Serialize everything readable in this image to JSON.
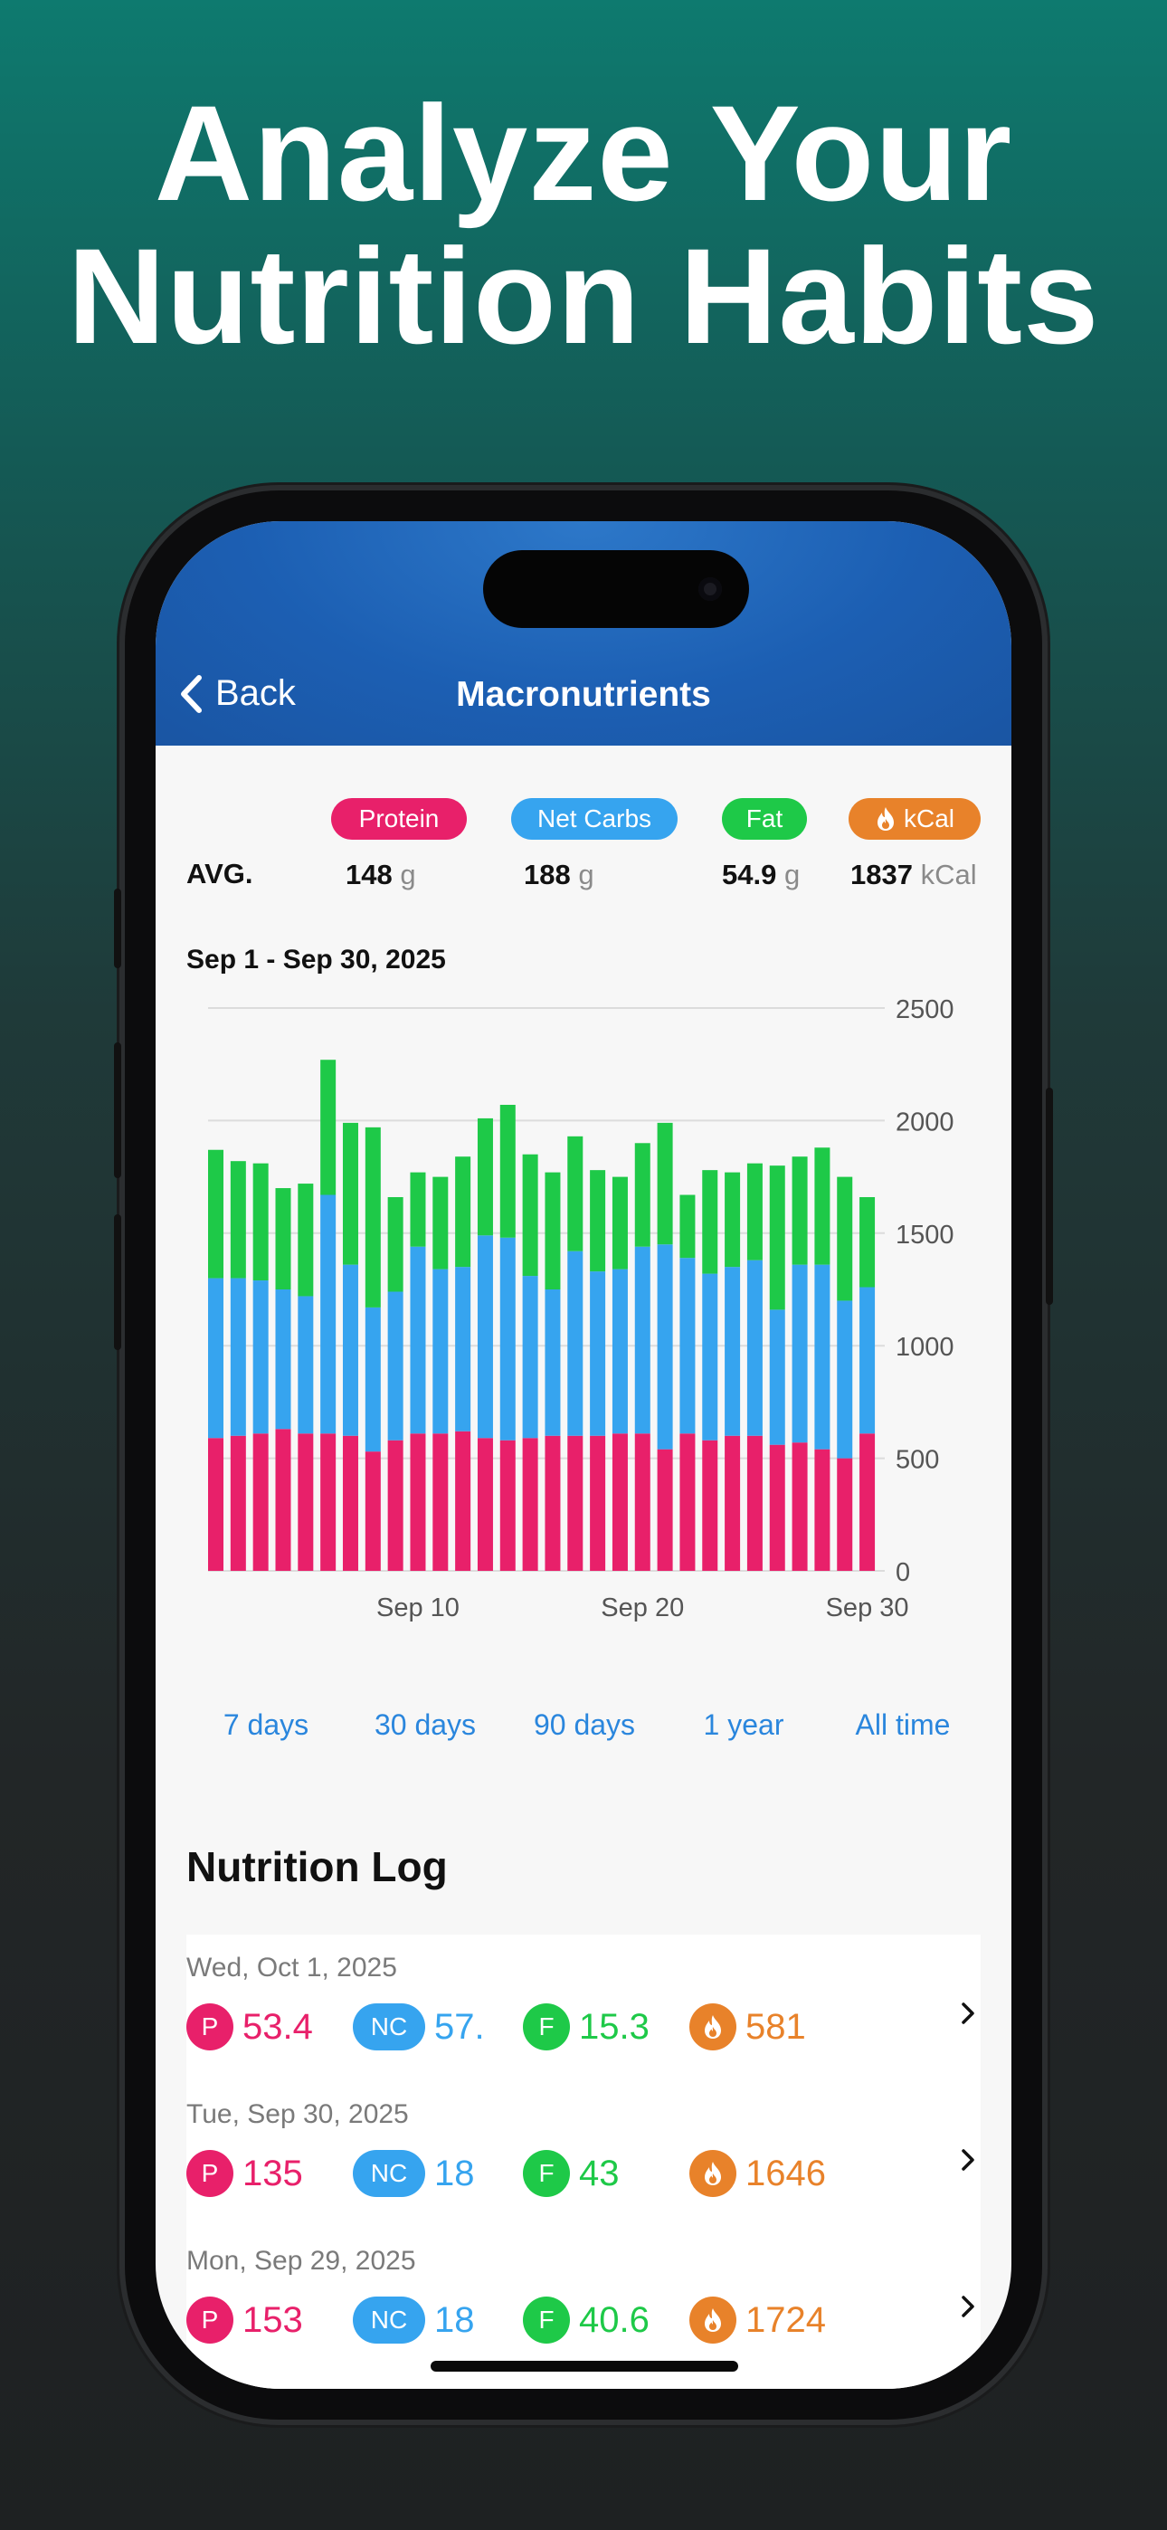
{
  "headline": {
    "line1": "Analyze Your",
    "line2": "Nutrition Habits"
  },
  "nav": {
    "back_label": "Back",
    "title": "Macronutrients"
  },
  "colors": {
    "protein": "#e8206a",
    "net_carbs": "#36a4ef",
    "fat": "#1ec948",
    "kcal": "#e8822a",
    "accent": "#2a86dd"
  },
  "summary": {
    "pills": {
      "protein": "Protein",
      "net_carbs": "Net Carbs",
      "fat": "Fat",
      "kcal": "kCal"
    },
    "avg_label": "AVG.",
    "protein": {
      "value": "148",
      "unit": "g"
    },
    "net_carbs": {
      "value": "188",
      "unit": "g"
    },
    "fat": {
      "value": "54.9",
      "unit": "g"
    },
    "kcal": {
      "value": "1837",
      "unit": "kCal"
    }
  },
  "chart": {
    "range_title": "Sep 1 - Sep 30, 2025"
  },
  "chart_data": {
    "type": "bar",
    "stacked": true,
    "title": "",
    "xlabel": "",
    "ylabel": "",
    "ylim": [
      0,
      2500
    ],
    "yticks": [
      0,
      500,
      1000,
      1500,
      2000,
      2500
    ],
    "y_axis_position": "right",
    "grid": true,
    "x_tick_labels": [
      {
        "day": 10,
        "label": "Sep 10"
      },
      {
        "day": 20,
        "label": "Sep 20"
      },
      {
        "day": 30,
        "label": "Sep 30"
      }
    ],
    "categories": [
      1,
      2,
      3,
      4,
      5,
      6,
      7,
      8,
      9,
      10,
      11,
      12,
      13,
      14,
      15,
      16,
      17,
      18,
      19,
      20,
      21,
      22,
      23,
      24,
      25,
      26,
      27,
      28,
      29,
      30
    ],
    "series": [
      {
        "key": "protein",
        "values": [
          590,
          600,
          610,
          630,
          610,
          610,
          600,
          530,
          580,
          610,
          610,
          620,
          590,
          580,
          590,
          600,
          600,
          600,
          610,
          610,
          540,
          610,
          580,
          600,
          600,
          560,
          570,
          540,
          500,
          610
        ]
      },
      {
        "key": "net_carbs",
        "values": [
          710,
          700,
          680,
          620,
          610,
          1060,
          760,
          640,
          660,
          830,
          730,
          730,
          900,
          900,
          720,
          650,
          820,
          730,
          730,
          830,
          910,
          780,
          740,
          750,
          780,
          600,
          790,
          820,
          700,
          650
        ]
      },
      {
        "key": "fat",
        "values": [
          570,
          520,
          520,
          450,
          500,
          600,
          630,
          800,
          420,
          330,
          410,
          490,
          520,
          590,
          540,
          520,
          510,
          450,
          410,
          460,
          540,
          280,
          460,
          420,
          430,
          640,
          480,
          520,
          550,
          400
        ]
      }
    ]
  },
  "periods": [
    "7 days",
    "30 days",
    "90 days",
    "1 year",
    "All time"
  ],
  "log": {
    "title": "Nutrition Log",
    "badge_labels": {
      "protein": "P",
      "net_carbs": "NC",
      "fat": "F"
    },
    "entries": [
      {
        "date": "Wed, Oct 1, 2025",
        "protein": "53.4",
        "net_carbs": "57.",
        "fat": "15.3",
        "kcal": "581"
      },
      {
        "date": "Tue, Sep 30, 2025",
        "protein": "135",
        "net_carbs": "18",
        "fat": "43",
        "kcal": "1646"
      },
      {
        "date": "Mon, Sep 29, 2025",
        "protein": "153",
        "net_carbs": "18",
        "fat": "40.6",
        "kcal": "1724"
      }
    ]
  }
}
